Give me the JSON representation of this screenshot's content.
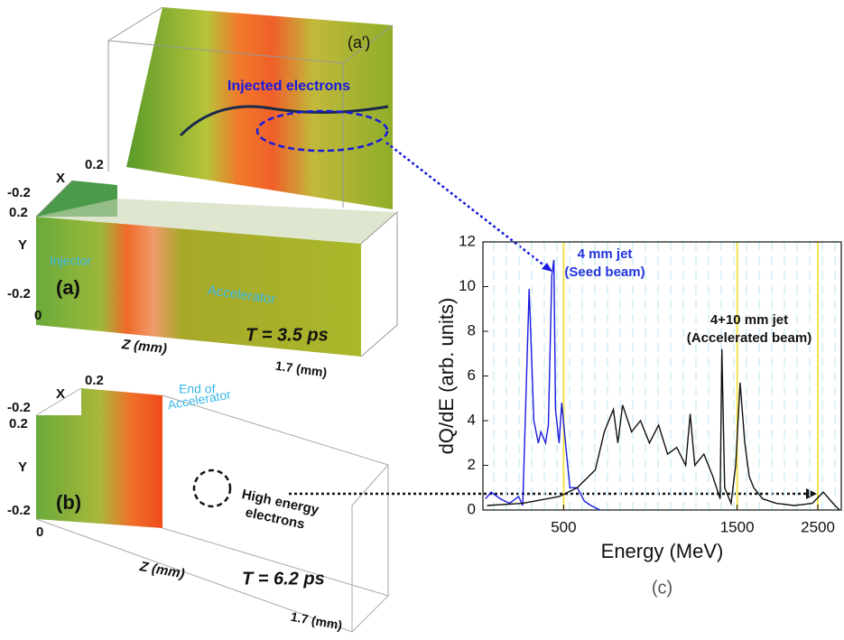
{
  "panel_a_prime": {
    "label": "(a′)",
    "annotation": "Injected electrons"
  },
  "panel_a": {
    "label": "(a)",
    "x_axis": "X",
    "x_max": "0.2",
    "x_min": "-0.2",
    "y_axis": "Y",
    "y_max": "0.2",
    "y_min": "-0.2",
    "z_origin": "0",
    "z_axis": "Z (mm)",
    "z_max": "1.7 (mm)",
    "regions": [
      "Injector",
      "Accelerator"
    ],
    "time": "T = 3.5 ps"
  },
  "panel_b": {
    "label": "(b)",
    "x_axis": "X",
    "x_max": "0.2",
    "x_min": "-0.2",
    "y_axis": "Y",
    "y_max": "0.2",
    "y_min": "-0.2",
    "z_origin": "0",
    "z_axis": "Z (mm)",
    "z_max": "1.7 (mm)",
    "annotations": [
      "End of",
      "Accelerator",
      "High energy",
      "electrons"
    ],
    "time": "T = 6.2 ps"
  },
  "chart_data": {
    "type": "line",
    "label": "(c)",
    "x_label": "Energy (MeV)",
    "y_label": "dQ/dE (arb. units)",
    "log_x": true,
    "xlim": [
      300,
      2900
    ],
    "xticks": [
      500,
      1500,
      2500
    ],
    "xgrid_color": "#f2e34a",
    "ylim": [
      0,
      12
    ],
    "yticks": [
      0,
      2,
      4,
      6,
      8,
      10,
      12
    ],
    "annotations": [
      {
        "text": [
          "4 mm jet",
          "(Seed beam)"
        ],
        "color": "#2233dd"
      },
      {
        "text": [
          "4+10 mm jet",
          "(Accelerated beam)"
        ],
        "color": "#111111"
      }
    ],
    "series": [
      {
        "color": "#1a1adf",
        "x": [
          305,
          316,
          335,
          355,
          376,
          386,
          402,
          414,
          426,
          433,
          446,
          454,
          464,
          470,
          475,
          486,
          494,
          506,
          520,
          545,
          570,
          594,
          629
        ],
        "values": [
          0.5,
          0.8,
          0.5,
          0.3,
          0.6,
          0.2,
          9.9,
          4,
          3,
          3.5,
          3,
          3.8,
          10.5,
          11.2,
          4.5,
          3,
          4.8,
          3,
          1,
          1,
          0.4,
          0.2,
          0
        ]
      },
      {
        "color": "#111111",
        "x": [
          308,
          386,
          486,
          545,
          611,
          647,
          685,
          705,
          726,
          769,
          813,
          861,
          912,
          966,
          1023,
          1083,
          1114,
          1147,
          1215,
          1286,
          1347,
          1362,
          1386,
          1443,
          1486,
          1528,
          1574,
          1619,
          1666,
          1763,
          1921,
          2153,
          2414,
          2587,
          2784,
          2870
        ],
        "values": [
          0.2,
          0.3,
          0.6,
          1,
          1.8,
          3.5,
          4.5,
          3,
          4.7,
          3.5,
          4,
          3,
          3.8,
          2.5,
          2.8,
          2,
          4.3,
          2,
          2.5,
          1.5,
          0.5,
          7.2,
          1,
          0.3,
          2,
          5.7,
          3,
          1.5,
          1,
          0.5,
          0.3,
          0.2,
          0.3,
          0.8,
          0.2,
          0
        ]
      }
    ]
  }
}
